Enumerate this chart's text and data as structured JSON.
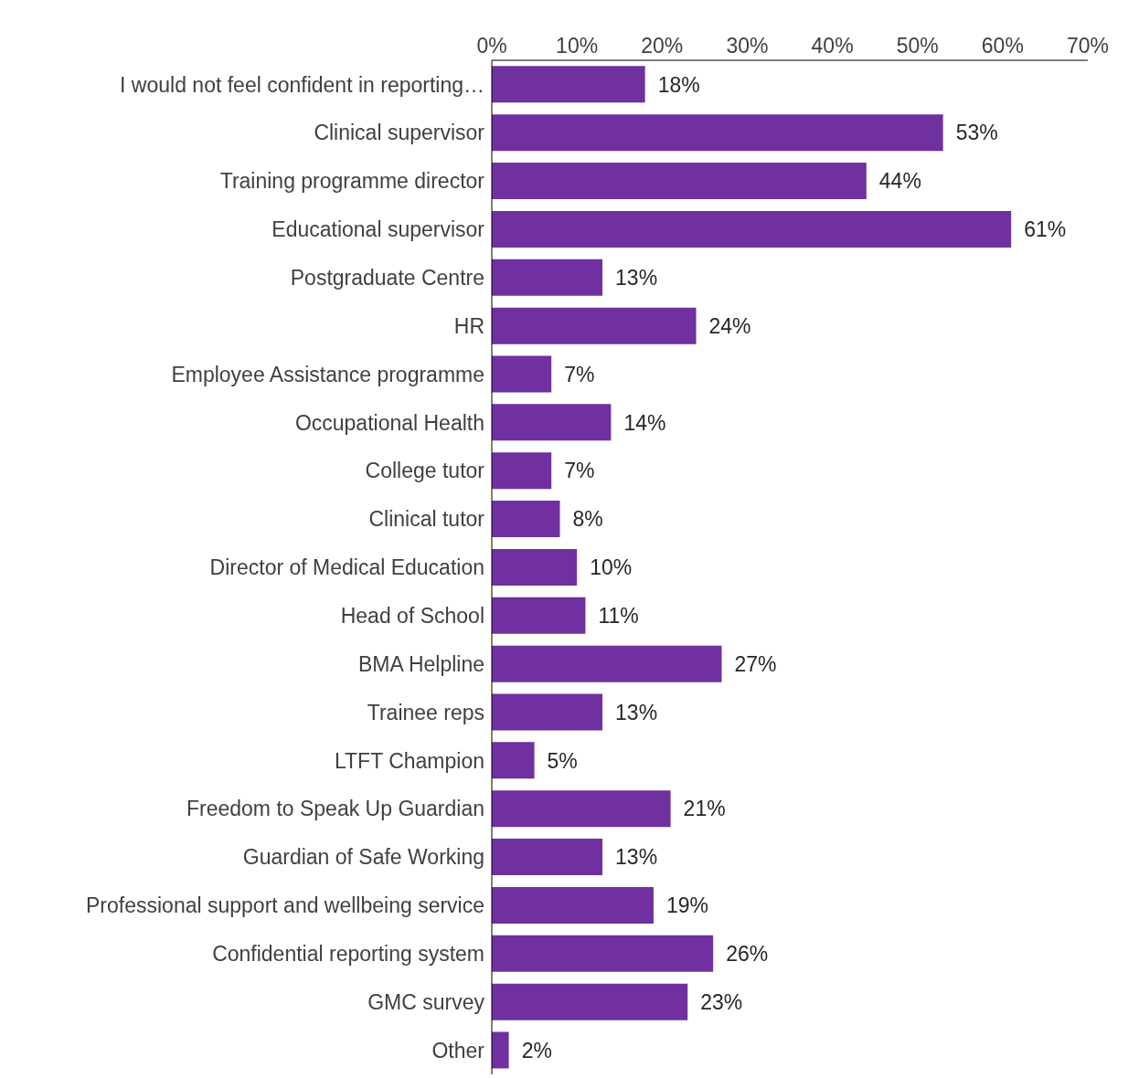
{
  "chart_data": {
    "type": "bar",
    "orientation": "horizontal",
    "categories": [
      "I would not feel confident in reporting…",
      "Clinical supervisor",
      "Training programme director",
      "Educational supervisor",
      "Postgraduate Centre",
      "HR",
      "Employee Assistance programme",
      "Occupational Health",
      "College tutor",
      "Clinical tutor",
      "Director of Medical Education",
      "Head of School",
      "BMA Helpline",
      "Trainee reps",
      "LTFT Champion",
      "Freedom to Speak Up Guardian",
      "Guardian of Safe Working",
      "Professional support and wellbeing service",
      "Confidential reporting system",
      "GMC survey",
      "Other"
    ],
    "values": [
      18,
      53,
      44,
      61,
      13,
      24,
      7,
      14,
      7,
      8,
      10,
      11,
      27,
      13,
      5,
      21,
      13,
      19,
      26,
      23,
      2
    ],
    "value_labels": [
      "18%",
      "53%",
      "44%",
      "61%",
      "13%",
      "24%",
      "7%",
      "14%",
      "7%",
      "8%",
      "10%",
      "11%",
      "27%",
      "13%",
      "5%",
      "21%",
      "13%",
      "19%",
      "26%",
      "23%",
      "2%"
    ],
    "color": "#7030a0",
    "xlim": [
      0,
      70
    ],
    "xticks": [
      {
        "value": 0,
        "label": "0%"
      },
      {
        "value": 10,
        "label": "10%"
      },
      {
        "value": 20,
        "label": "20%"
      },
      {
        "value": 30,
        "label": "30%"
      },
      {
        "value": 40,
        "label": "40%"
      },
      {
        "value": 50,
        "label": "50%"
      },
      {
        "value": 60,
        "label": "60%"
      },
      {
        "value": 70,
        "label": "70%"
      }
    ]
  }
}
